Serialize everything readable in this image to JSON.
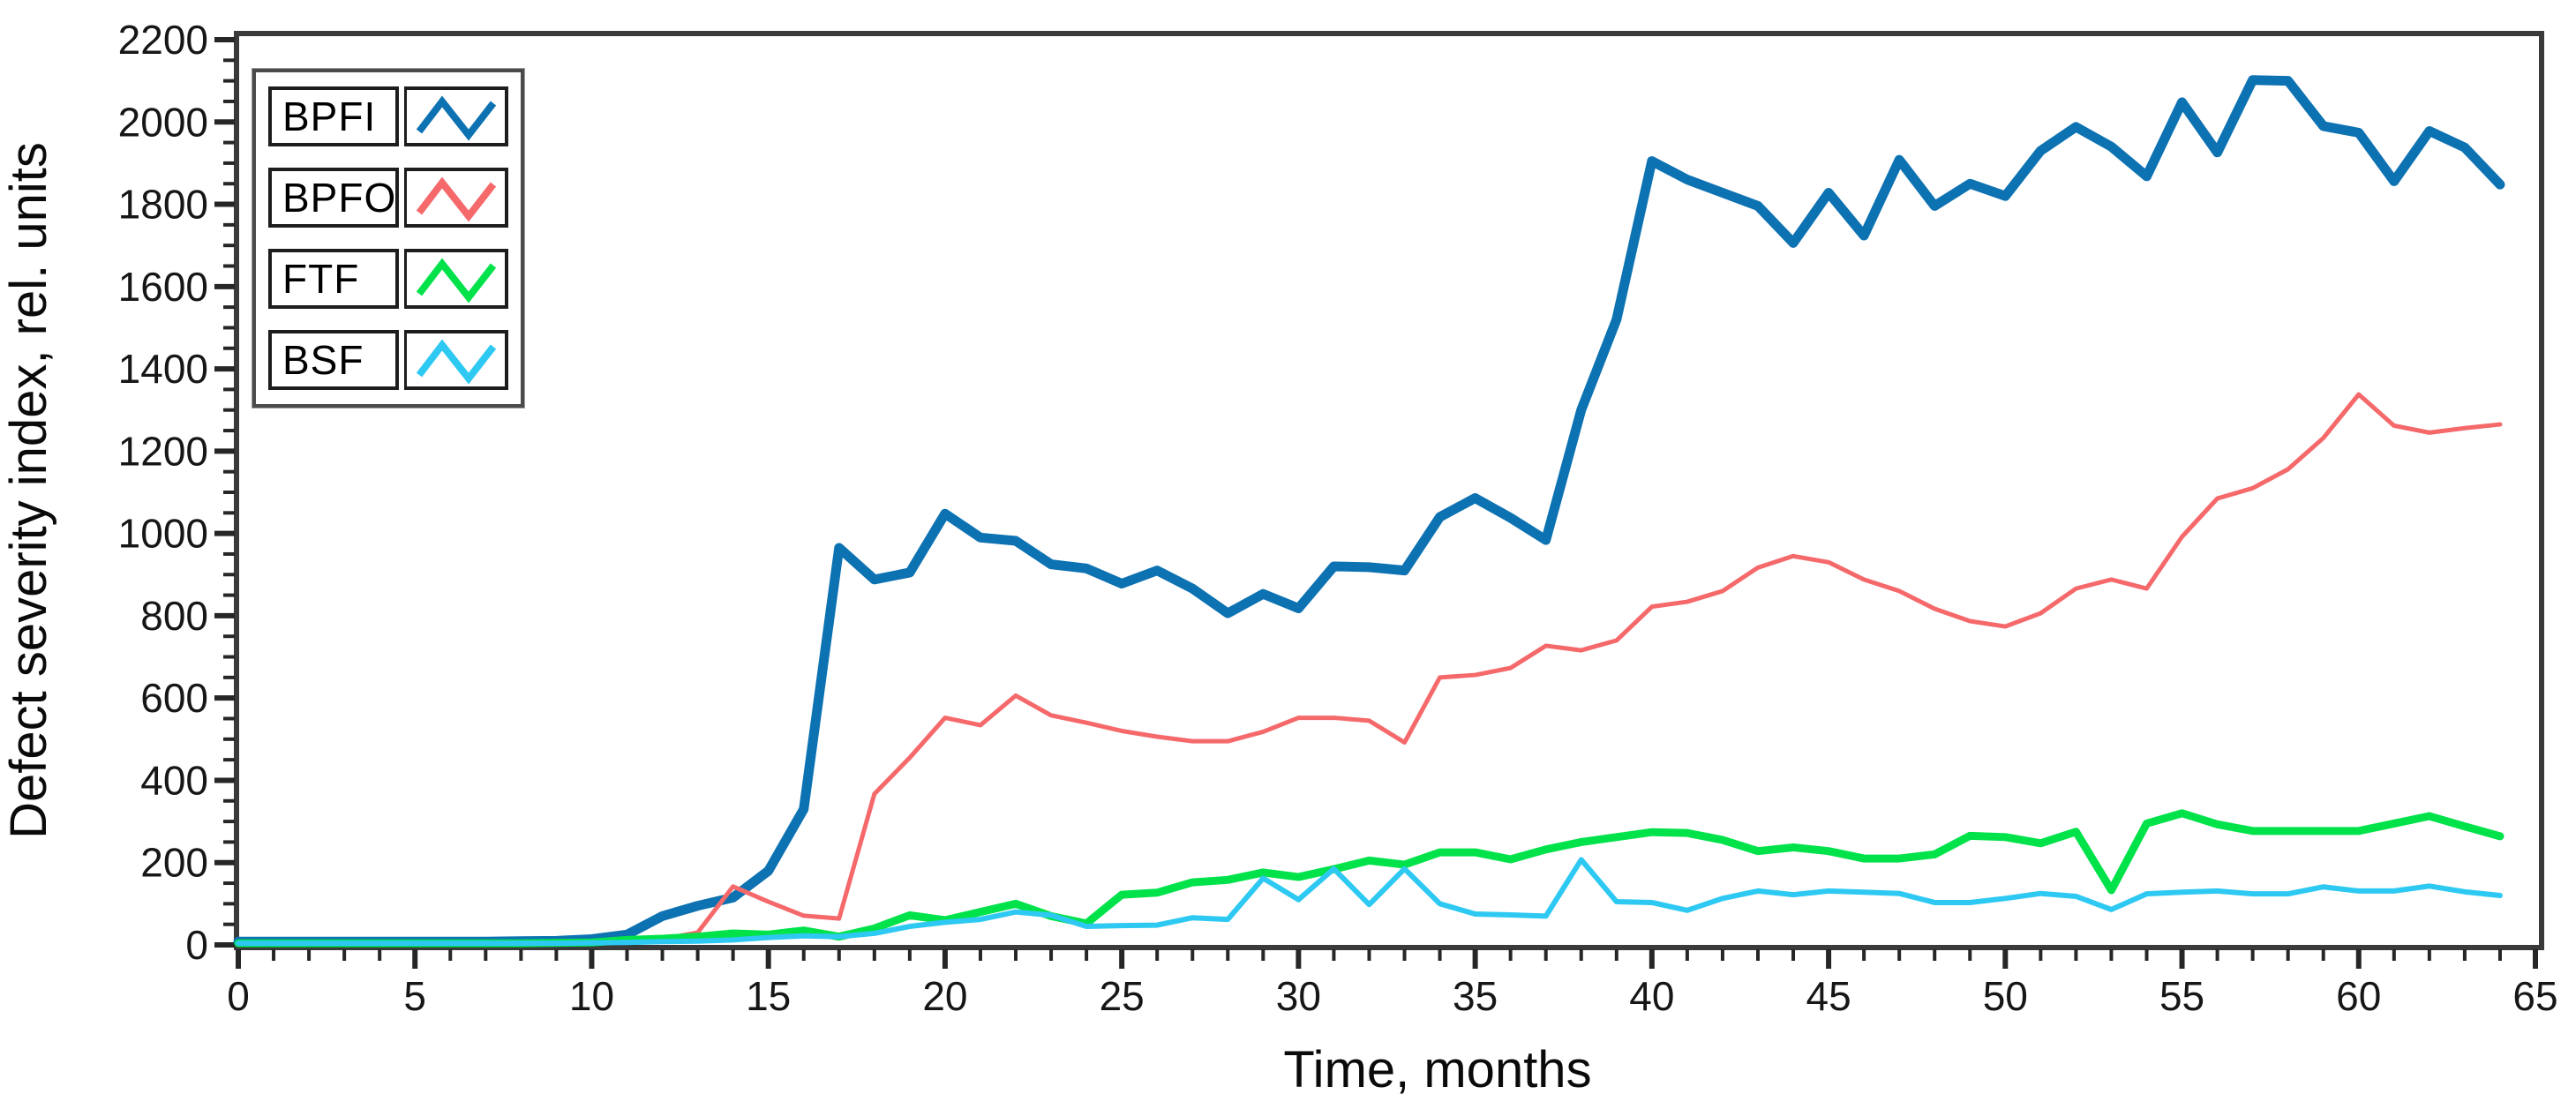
{
  "chart_data": {
    "type": "line",
    "title": "",
    "xlabel": "Time, months",
    "ylabel": "Defect severity index, rel. units",
    "xlim": [
      0,
      65
    ],
    "ylim": [
      0,
      2200
    ],
    "grid": false,
    "legend_position": "top-left",
    "x_tick_labels": [
      "0",
      "5",
      "10",
      "15",
      "20",
      "25",
      "30",
      "35",
      "40",
      "45",
      "50",
      "55",
      "60",
      "65"
    ],
    "y_tick_labels": [
      "0",
      "200",
      "400",
      "600",
      "800",
      "1000",
      "1200",
      "1400",
      "1600",
      "1800",
      "2000",
      "2200"
    ],
    "x_major_tick_step": 5,
    "x_minor_tick_step": 1,
    "y_major_tick_step": 200,
    "y_minor_tick_step": 50,
    "x": [
      0,
      1,
      2,
      3,
      4,
      5,
      6,
      7,
      8,
      9,
      10,
      11,
      12,
      13,
      14,
      15,
      16,
      17,
      18,
      19,
      20,
      21,
      22,
      23,
      24,
      25,
      26,
      27,
      28,
      29,
      30,
      31,
      32,
      33,
      34,
      35,
      36,
      37,
      38,
      39,
      40,
      41,
      42,
      43,
      44,
      45,
      46,
      47,
      48,
      49,
      50,
      51,
      52,
      53,
      54,
      55,
      56,
      57,
      58,
      59,
      60,
      61,
      62,
      63,
      64
    ],
    "series": [
      {
        "name": "BPFI",
        "color": "#0d72b2",
        "line_width": 11,
        "values": [
          8,
          8,
          8,
          8,
          8,
          8,
          8,
          8,
          9,
          10,
          14,
          25,
          70,
          95,
          115,
          180,
          330,
          965,
          888,
          905,
          1048,
          990,
          982,
          925,
          915,
          878,
          910,
          866,
          806,
          853,
          818,
          920,
          918,
          910,
          1040,
          1086,
          1038,
          984,
          1300,
          1520,
          1905,
          1860,
          1828,
          1796,
          1706,
          1828,
          1724,
          1908,
          1796,
          1850,
          1820,
          1930,
          1988,
          1940,
          1868,
          2048,
          1926,
          2102,
          2100,
          1990,
          1974,
          1856,
          1978,
          1938,
          1848
        ]
      },
      {
        "name": "BPFO",
        "color": "#f5696b",
        "line_width": 5,
        "values": [
          5,
          5,
          5,
          5,
          5,
          5,
          5,
          5,
          6,
          8,
          9,
          10,
          14,
          30,
          142,
          105,
          71,
          64,
          367,
          455,
          552,
          534,
          606,
          558,
          540,
          520,
          506,
          495,
          495,
          518,
          552,
          552,
          545,
          492,
          650,
          656,
          673,
          727,
          716,
          740,
          822,
          834,
          860,
          917,
          945,
          930,
          888,
          860,
          817,
          787,
          774,
          806,
          866,
          888,
          866,
          992,
          1085,
          1110,
          1156,
          1232,
          1338,
          1262,
          1245,
          1256,
          1265
        ]
      },
      {
        "name": "FTF",
        "color": "#00e24a",
        "line_width": 9,
        "values": [
          4,
          4,
          4,
          4,
          4,
          4,
          4,
          4,
          4,
          5,
          6,
          12,
          15,
          20,
          28,
          25,
          35,
          20,
          40,
          72,
          60,
          80,
          100,
          70,
          52,
          122,
          127,
          152,
          158,
          176,
          165,
          184,
          205,
          195,
          225,
          225,
          208,
          232,
          250,
          262,
          274,
          272,
          255,
          228,
          237,
          228,
          210,
          210,
          220,
          265,
          262,
          247,
          275,
          133,
          295,
          320,
          293,
          277,
          277,
          277,
          277,
          295,
          313,
          288,
          264
        ]
      },
      {
        "name": "BSF",
        "color": "#2ec9f2",
        "line_width": 6,
        "values": [
          4,
          4,
          4,
          4,
          4,
          4,
          4,
          4,
          4,
          4,
          5,
          6,
          8,
          9,
          12,
          18,
          22,
          20,
          28,
          45,
          55,
          62,
          80,
          72,
          45,
          47,
          48,
          66,
          62,
          162,
          110,
          185,
          98,
          185,
          100,
          75,
          73,
          70,
          207,
          105,
          103,
          84,
          113,
          131,
          122,
          131,
          128,
          125,
          103,
          103,
          113,
          125,
          118,
          86,
          124,
          128,
          131,
          124,
          124,
          141,
          131,
          131,
          143,
          129,
          120
        ]
      }
    ]
  }
}
